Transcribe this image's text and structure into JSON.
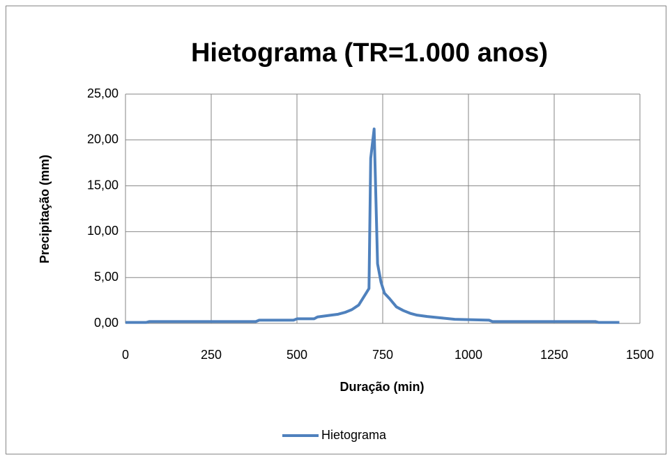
{
  "chart_data": {
    "type": "line",
    "title": "Hietograma (TR=1.000 anos)",
    "x_label": "Duração (min)",
    "y_label": "Precipitação (mm)",
    "x": [
      0,
      60,
      70,
      150,
      250,
      380,
      390,
      490,
      500,
      550,
      560,
      600,
      620,
      640,
      660,
      680,
      690,
      700,
      710,
      715,
      725,
      735,
      745,
      755,
      770,
      790,
      810,
      830,
      850,
      880,
      920,
      960,
      1060,
      1070,
      1200,
      1370,
      1380,
      1440
    ],
    "series": [
      {
        "name": "Hietograma",
        "color": "#4f81bd",
        "values": [
          0.1,
          0.1,
          0.2,
          0.2,
          0.2,
          0.2,
          0.35,
          0.35,
          0.5,
          0.5,
          0.7,
          0.9,
          1.0,
          1.2,
          1.5,
          2.0,
          2.6,
          3.2,
          3.8,
          18.0,
          21.2,
          6.5,
          4.5,
          3.3,
          2.7,
          1.8,
          1.4,
          1.1,
          0.9,
          0.75,
          0.6,
          0.45,
          0.35,
          0.2,
          0.2,
          0.2,
          0.1,
          0.1
        ]
      }
    ],
    "xlim": [
      0,
      1500
    ],
    "xticks": [
      0,
      250,
      500,
      750,
      1000,
      1250,
      1500
    ],
    "ylim": [
      0,
      25
    ],
    "yticks": [
      {
        "value": 0,
        "label": "0,00"
      },
      {
        "value": 5,
        "label": "5,00"
      },
      {
        "value": 10,
        "label": "10,00"
      },
      {
        "value": 15,
        "label": "15,00"
      },
      {
        "value": 20,
        "label": "20,00"
      },
      {
        "value": 25,
        "label": "25,00"
      }
    ],
    "grid": true,
    "legend": "bottom"
  }
}
